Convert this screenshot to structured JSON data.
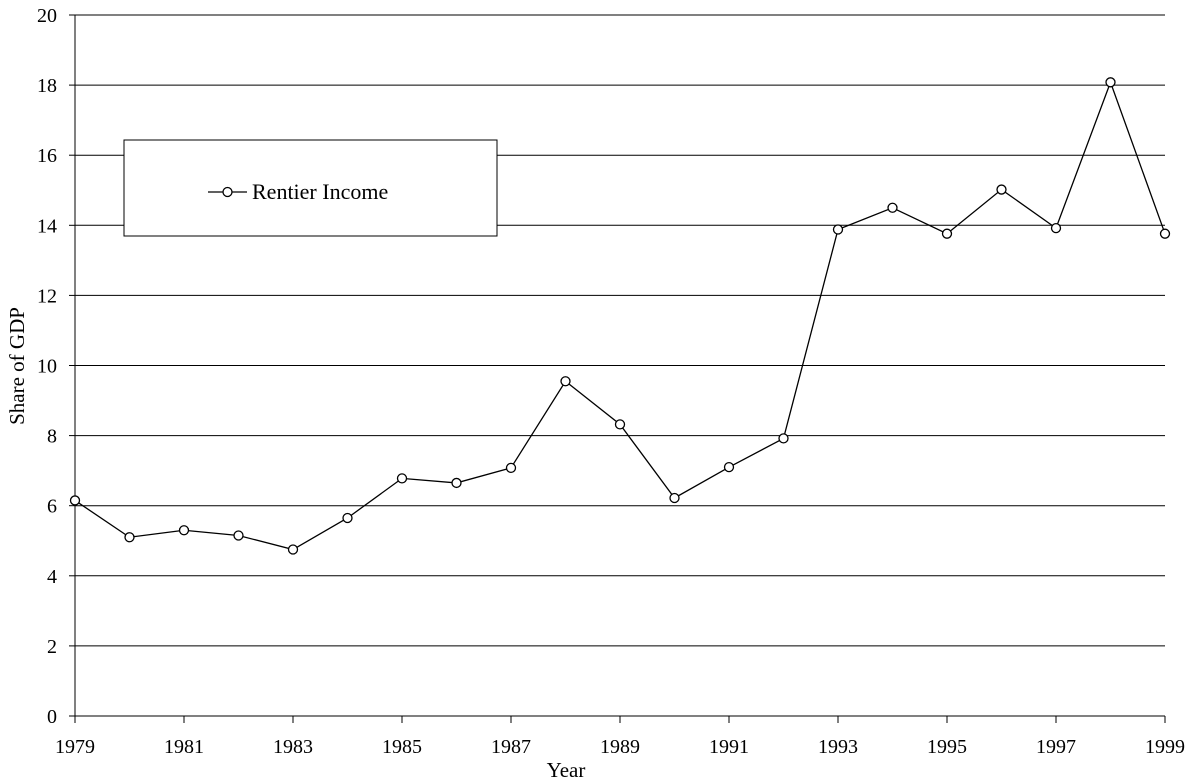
{
  "chart_data": {
    "type": "line",
    "title": "",
    "xlabel": "Year",
    "ylabel": "Share of GDP",
    "x": [
      1979,
      1980,
      1981,
      1982,
      1983,
      1984,
      1985,
      1986,
      1987,
      1988,
      1989,
      1990,
      1991,
      1992,
      1993,
      1994,
      1995,
      1996,
      1997,
      1998,
      1999
    ],
    "x_tick_labels": [
      "1979",
      "1981",
      "1983",
      "1985",
      "1987",
      "1989",
      "1991",
      "1993",
      "1995",
      "1997",
      "1999"
    ],
    "x_ticks": [
      1979,
      1981,
      1983,
      1985,
      1987,
      1989,
      1991,
      1993,
      1995,
      1997,
      1999
    ],
    "xlim": [
      1979,
      1999
    ],
    "y_tick_labels": [
      "0",
      "2",
      "4",
      "6",
      "8",
      "10",
      "12",
      "14",
      "16",
      "18",
      "20"
    ],
    "y_ticks": [
      0,
      2,
      4,
      6,
      8,
      10,
      12,
      14,
      16,
      18,
      20
    ],
    "ylim": [
      0,
      20
    ],
    "grid": "horizontal",
    "legend": "top-left",
    "series": [
      {
        "name": "Rentier Income",
        "marker": "open-circle",
        "color": "#000000",
        "values": [
          6.15,
          5.1,
          5.3,
          5.15,
          4.75,
          5.65,
          6.78,
          6.65,
          7.08,
          9.55,
          8.32,
          6.22,
          7.1,
          7.92,
          13.88,
          14.5,
          13.76,
          15.02,
          13.92,
          18.08,
          13.76
        ]
      }
    ]
  }
}
